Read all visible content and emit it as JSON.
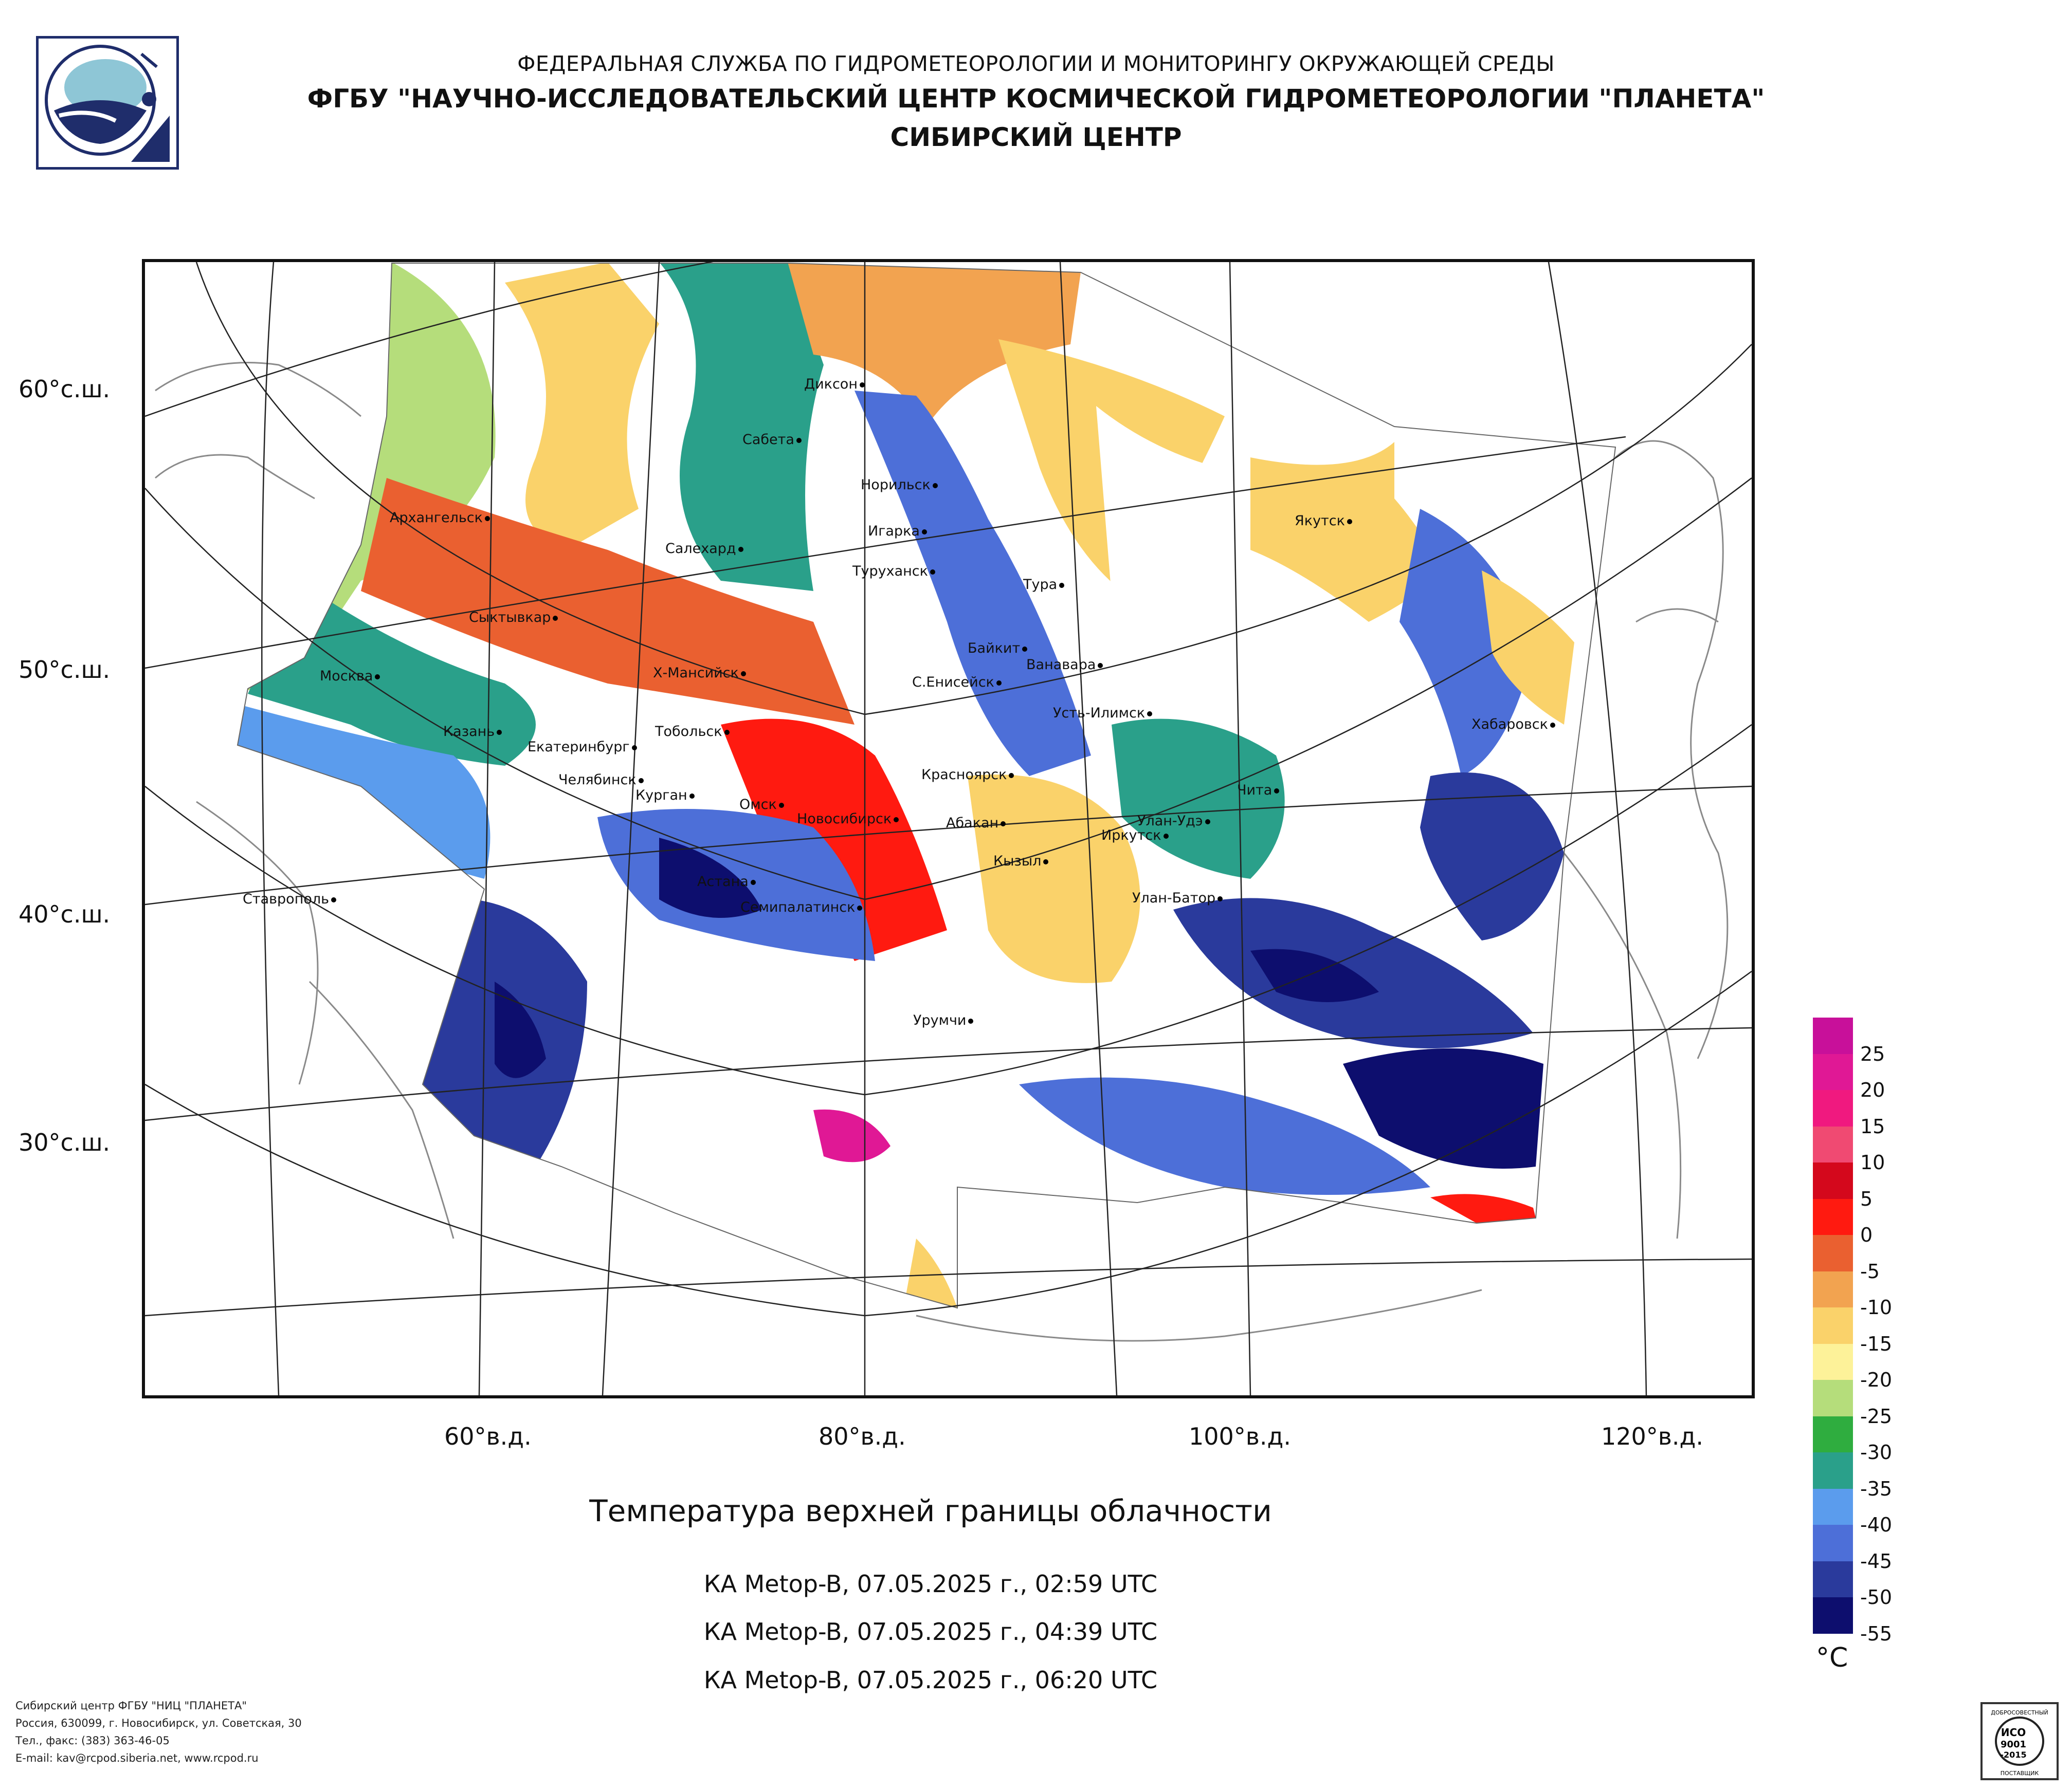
{
  "header": {
    "line1": "ФЕДЕРАЛЬНАЯ СЛУЖБА ПО ГИДРОМЕТЕОРОЛОГИИ И МОНИТОРИНГУ ОКРУЖАЮЩЕЙ СРЕДЫ",
    "line2": "ФГБУ \"НАУЧНО-ИССЛЕДОВАТЕЛЬСКИЙ ЦЕНТР КОСМИЧЕСКОЙ ГИДРОМЕТЕОРОЛОГИИ \"ПЛАНЕТА\"",
    "line3": "СИБИРСКИЙ ЦЕНТР"
  },
  "map": {
    "lat_labels": [
      "60°с.ш.",
      "50°с.ш.",
      "40°с.ш.",
      "30°с.ш."
    ],
    "lon_labels": [
      "60°в.д.",
      "80°в.д.",
      "100°в.д.",
      "120°в.д."
    ],
    "cities": [
      "Диксон",
      "Сабета",
      "Норильск",
      "Якутск",
      "Архангельск",
      "Игарка",
      "Салехард",
      "Туруханск",
      "Тура",
      "Сыктывкар",
      "Байкит",
      "Ванавара",
      "Москва",
      "Х-Мансийск",
      "С.Енисейск",
      "Усть-Илимск",
      "Казань",
      "Тобольск",
      "Хабаровск",
      "Екатеринбург",
      "Красноярск",
      "Челябинск",
      "Курган",
      "Омск",
      "Чита",
      "Новосибирск",
      "Абакан",
      "Улан-Удэ",
      "Иркутск",
      "Кызыл",
      "Астана",
      "Ставрополь",
      "Улан-Батор",
      "Семипалатинск",
      "Урумчи"
    ]
  },
  "legend": {
    "ticks": [
      "25",
      "20",
      "15",
      "10",
      "5",
      "0",
      "-5",
      "-10",
      "-15",
      "-20",
      "-25",
      "-30",
      "-35",
      "-40",
      "-45",
      "-50",
      "-55"
    ],
    "unit": "°C",
    "colors": [
      "#c8109a",
      "#e01895",
      "#f0197f",
      "#f04a72",
      "#d4081c",
      "#ff1a10",
      "#ea6030",
      "#f2a350",
      "#fad26a",
      "#fdf299",
      "#b5dd7b",
      "#2fad3f",
      "#2aa08a",
      "#5b9ced",
      "#4d6fd8",
      "#2a3a9c",
      "#0d0e6e"
    ]
  },
  "caption": {
    "title": "Температура верхней границы облачности",
    "passes": [
      "КА Metop-B, 07.05.2025 г., 02:59 UTC",
      "КА Metop-B, 07.05.2025 г., 04:39 UTC",
      "КА Metop-B, 07.05.2025 г., 06:20 UTC"
    ]
  },
  "footer": {
    "lines": [
      "Сибирский центр ФГБУ \"НИЦ \"ПЛАНЕТА\"",
      "Россия, 630099, г. Новосибирск, ул. Советская, 30",
      "Тел., факс: (383) 363-46-05",
      "E-mail: kav@rcpod.siberia.net, www.rcpod.ru"
    ]
  },
  "cert": {
    "lines": [
      "ДОБРОСОВЕСТНЫЙ",
      "ИСО",
      "9001",
      "-2015",
      "ПОСТАВЩИК"
    ]
  }
}
